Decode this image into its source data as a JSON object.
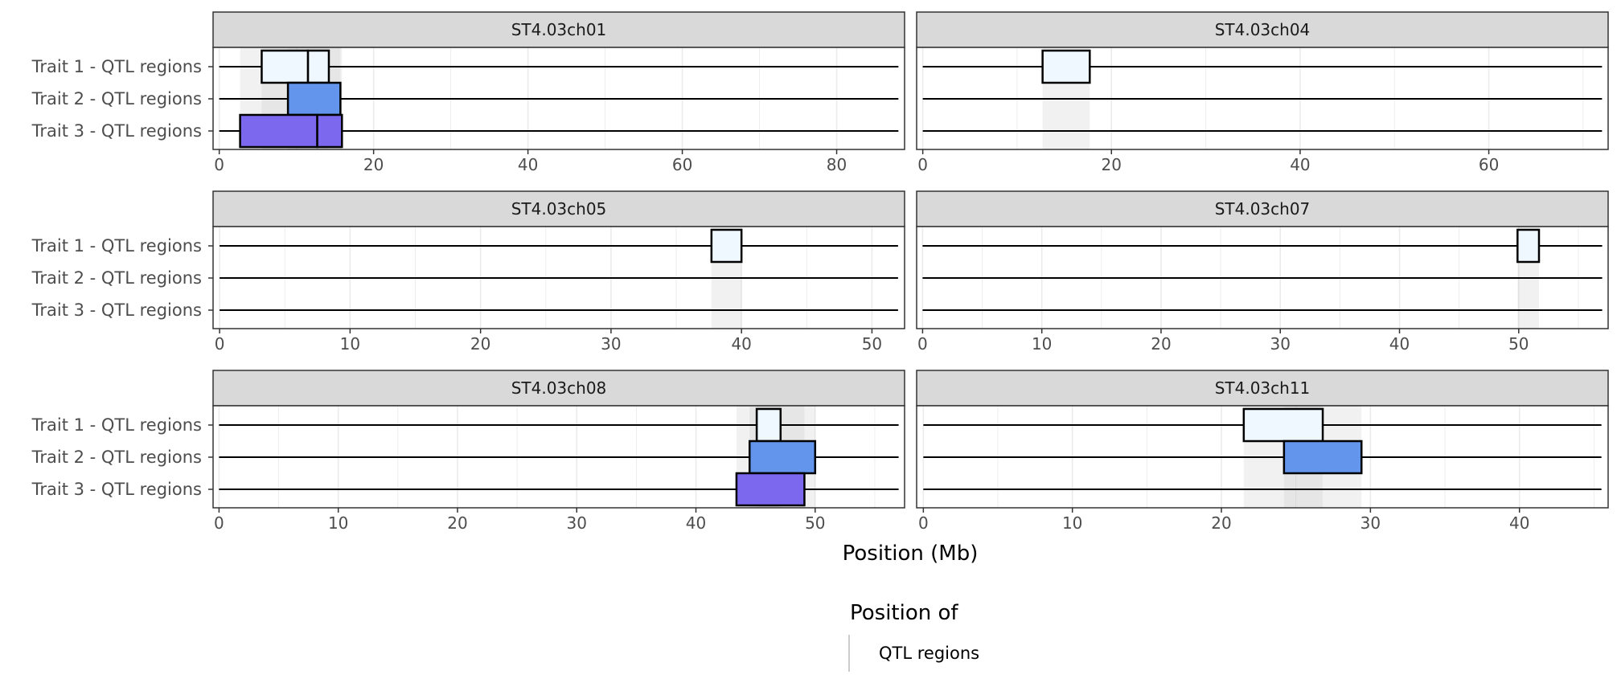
{
  "chart_data": {
    "type": "interval",
    "facet_order": [
      "ST4.03ch01",
      "ST4.03ch04",
      "ST4.03ch05",
      "ST4.03ch07",
      "ST4.03ch08",
      "ST4.03ch11"
    ],
    "traits": [
      "Trait 1 - QTL regions",
      "Trait 2 - QTL regions",
      "Trait 3 - QTL regions"
    ],
    "trait_colors": [
      "#f0f8ff",
      "#6495ed",
      "#7b68ee"
    ],
    "xlabel": "Position (Mb)",
    "legend": {
      "title": "Position of",
      "items": [
        {
          "label": "QTL regions",
          "color": "#cccccc"
        }
      ]
    },
    "facets": [
      {
        "label": "ST4.03ch01",
        "xlim": [
          -0.8,
          88.8
        ],
        "chrom_length": 88,
        "ticks": [
          0,
          20,
          40,
          60,
          80
        ],
        "regions": [
          {
            "trait": 0,
            "start": 5.5,
            "end": 11.5
          },
          {
            "trait": 0,
            "start": 11.5,
            "end": 14.2
          },
          {
            "trait": 1,
            "start": 8.9,
            "end": 15.7
          },
          {
            "trait": 2,
            "start": 2.7,
            "end": 12.7
          },
          {
            "trait": 2,
            "start": 12.7,
            "end": 15.9
          }
        ]
      },
      {
        "label": "ST4.03ch04",
        "xlim": [
          -0.65,
          72.65
        ],
        "chrom_length": 72,
        "ticks": [
          0,
          20,
          40,
          60
        ],
        "regions": [
          {
            "trait": 0,
            "start": 12.7,
            "end": 17.7
          }
        ]
      },
      {
        "label": "ST4.03ch05",
        "xlim": [
          -0.5,
          52.5
        ],
        "chrom_length": 52,
        "ticks": [
          0,
          10,
          20,
          30,
          40,
          50
        ],
        "regions": [
          {
            "trait": 0,
            "start": 37.7,
            "end": 40.0
          }
        ]
      },
      {
        "label": "ST4.03ch07",
        "xlim": [
          -0.5,
          57.5
        ],
        "chrom_length": 57,
        "ticks": [
          0,
          10,
          20,
          30,
          40,
          50
        ],
        "regions": [
          {
            "trait": 0,
            "start": 49.9,
            "end": 51.7
          }
        ]
      },
      {
        "label": "ST4.03ch08",
        "xlim": [
          -0.5,
          57.5
        ],
        "chrom_length": 57,
        "ticks": [
          0,
          10,
          20,
          30,
          40,
          50
        ],
        "regions": [
          {
            "trait": 0,
            "start": 45.1,
            "end": 47.1
          },
          {
            "trait": 1,
            "start": 44.5,
            "end": 50.0
          },
          {
            "trait": 2,
            "start": 43.4,
            "end": 49.1
          }
        ]
      },
      {
        "label": "ST4.03ch11",
        "xlim": [
          -0.45,
          45.95
        ],
        "chrom_length": 45.5,
        "ticks": [
          0,
          10,
          20,
          30,
          40
        ],
        "regions": [
          {
            "trait": 0,
            "start": 21.5,
            "end": 26.8
          },
          {
            "trait": 1,
            "start": 24.2,
            "end": 29.4
          }
        ]
      }
    ]
  }
}
